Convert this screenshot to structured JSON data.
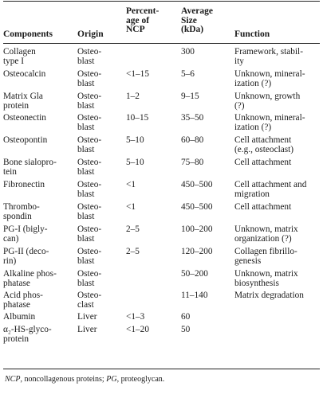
{
  "table": {
    "headers": {
      "components": [
        "Components"
      ],
      "origin": [
        "Origin"
      ],
      "percentage": [
        "Percent-",
        "age of",
        "NCP"
      ],
      "size": [
        "Average",
        "Size",
        "(kDa)"
      ],
      "function": [
        "Function"
      ]
    },
    "rows": [
      {
        "component": [
          "Collagen",
          "type I"
        ],
        "origin": [
          "Osteo-",
          "blast"
        ],
        "percentage": [],
        "size": [
          "300"
        ],
        "function": [
          "Framework, stabil-",
          "ity"
        ]
      },
      {
        "component": [
          "Osteocalcin"
        ],
        "origin": [
          "Osteo-",
          "blast"
        ],
        "percentage": [
          "<1–15"
        ],
        "size": [
          "5–6"
        ],
        "function": [
          "Unknown, mineral-",
          "ization (?)"
        ]
      },
      {
        "component": [
          "Matrix Gla",
          "protein"
        ],
        "origin": [
          "Osteo-",
          "blast"
        ],
        "percentage": [
          "1–2"
        ],
        "size": [
          "9–15"
        ],
        "function": [
          "Unknown, growth",
          "(?)"
        ]
      },
      {
        "component": [
          "Osteonectin"
        ],
        "origin": [
          "Osteo-",
          "blast"
        ],
        "percentage": [
          "10–15"
        ],
        "size": [
          "35–50"
        ],
        "function": [
          "Unknown, mineral-",
          "ization (?)"
        ]
      },
      {
        "component": [
          "Osteopontin"
        ],
        "origin": [
          "Osteo-",
          "blast"
        ],
        "percentage": [
          "5–10"
        ],
        "size": [
          "60–80"
        ],
        "function": [
          "Cell attachment",
          "(e.g., osteoclast)"
        ]
      },
      {
        "component": [
          "Bone sialopro-",
          "tein"
        ],
        "origin": [
          "Osteo-",
          "blast"
        ],
        "percentage": [
          "5–10"
        ],
        "size": [
          "75–80"
        ],
        "function": [
          "Cell attachment"
        ]
      },
      {
        "component": [
          "Fibronectin"
        ],
        "origin": [
          "Osteo-",
          "blast"
        ],
        "percentage": [
          "<1"
        ],
        "size": [
          "450–500"
        ],
        "function": [
          "Cell attachment and",
          "migration"
        ]
      },
      {
        "component": [
          "Thrombo-",
          "spondin"
        ],
        "origin": [
          "Osteo-",
          "blast"
        ],
        "percentage": [
          "<1"
        ],
        "size": [
          "450–500"
        ],
        "function": [
          "Cell attachment"
        ]
      },
      {
        "component": [
          "PG-I (bigly-",
          "can)"
        ],
        "origin": [
          "Osteo-",
          "blast"
        ],
        "percentage": [
          "2–5"
        ],
        "size": [
          "100–200"
        ],
        "function": [
          "Unknown, matrix",
          "organization (?)"
        ]
      },
      {
        "component": [
          "PG-II (deco-",
          "rin)"
        ],
        "origin": [
          "Osteo-",
          "blast"
        ],
        "percentage": [
          "2–5"
        ],
        "size": [
          "120–200"
        ],
        "function": [
          "Collagen fibrillo-",
          "genesis"
        ]
      },
      {
        "component": [
          "Alkaline phos-",
          "phatase"
        ],
        "origin": [
          "Osteo-",
          "blast"
        ],
        "percentage": [],
        "size": [
          "50–200"
        ],
        "function": [
          "Unknown, matrix",
          "biosynthesis"
        ]
      },
      {
        "component": [
          "Acid phos-",
          "phatase"
        ],
        "origin": [
          "Osteo-",
          "clast"
        ],
        "percentage": [],
        "size": [
          "11–140"
        ],
        "function": [
          "Matrix degradation"
        ]
      },
      {
        "component": [
          "Albumin"
        ],
        "origin": [
          "Liver"
        ],
        "percentage": [
          "<1–3"
        ],
        "size": [
          "60"
        ],
        "function": []
      },
      {
        "component": [
          "α₂-HS-glyco-",
          "protein"
        ],
        "origin": [
          "Liver"
        ],
        "percentage": [
          "<1–20"
        ],
        "size": [
          "50"
        ],
        "function": []
      }
    ]
  },
  "footnote": {
    "abbr1": "NCP",
    "text1": ", noncollagenous proteins; ",
    "abbr2": "PG",
    "text2": ", proteoglycan."
  }
}
